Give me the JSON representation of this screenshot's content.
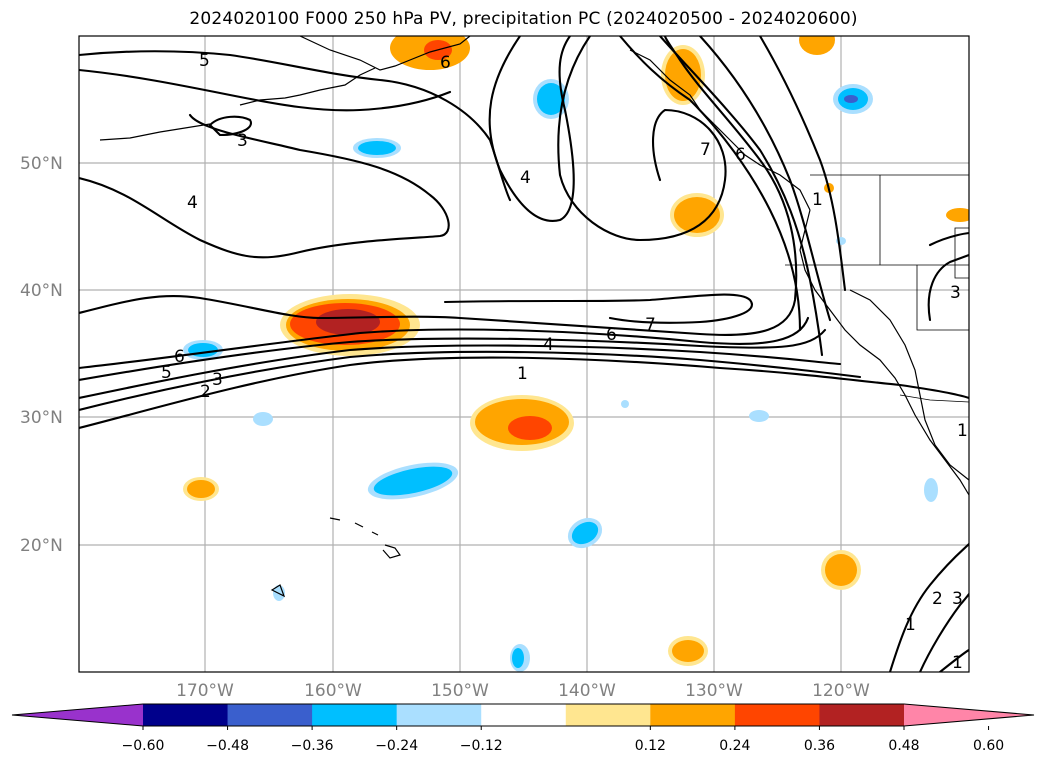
{
  "title": "2024020100 F000 250 hPa PV, precipitation PC (2024020500 - 2024020600)",
  "map": {
    "lon_labels": [
      "170°W",
      "160°W",
      "150°W",
      "140°W",
      "130°W",
      "120°W"
    ],
    "lat_labels": [
      "50°N",
      "40°N",
      "30°N",
      "20°N"
    ],
    "contour_labels": [
      "5",
      "3",
      "4",
      "6",
      "4",
      "7",
      "6",
      "7",
      "6",
      "4",
      "1",
      "5",
      "3",
      "2",
      "6",
      "1",
      "1",
      "2",
      "3",
      "1",
      "1",
      "3"
    ],
    "fill_colors": {
      "light_blue": "#aadfff",
      "blue": "#00bfff",
      "mid_blue": "#4f7fdf",
      "yellow": "#ffe690",
      "orange": "#ffa500",
      "red_orange": "#ff4500",
      "dark_red": "#b22222",
      "pink": "#ff85a8"
    }
  },
  "colorbar": {
    "tick_labels": [
      "−0.60",
      "−0.48",
      "−0.36",
      "−0.24",
      "−0.12",
      "0.12",
      "0.24",
      "0.36",
      "0.48",
      "0.60"
    ],
    "colors": [
      "#9932cc",
      "#00008b",
      "#3a5fcd",
      "#00bfff",
      "#aadfff",
      "#ffffff",
      "#ffe690",
      "#ffa500",
      "#ff4500",
      "#b22222",
      "#ff85a8"
    ]
  }
}
